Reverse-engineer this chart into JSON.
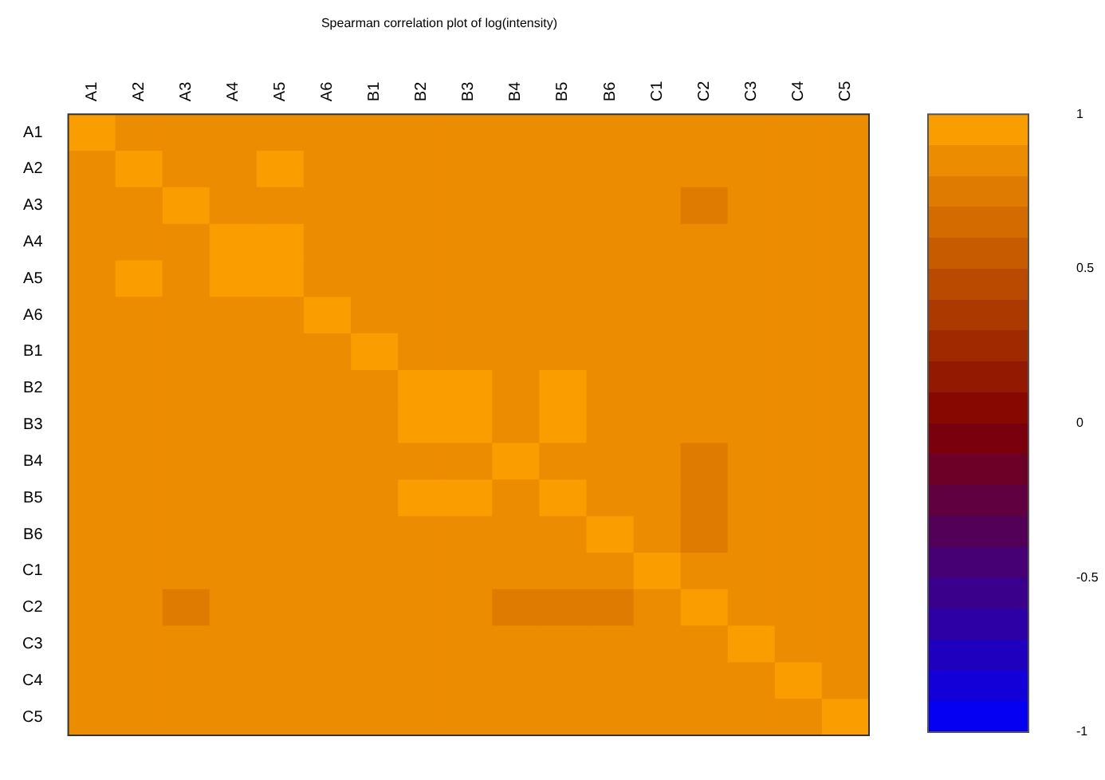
{
  "chart_data": {
    "type": "heatmap",
    "title": "Spearman correlation plot of log(intensity)",
    "categories": [
      "A1",
      "A2",
      "A3",
      "A4",
      "A5",
      "A6",
      "B1",
      "B2",
      "B3",
      "B4",
      "B5",
      "B6",
      "C1",
      "C2",
      "C3",
      "C4",
      "C5"
    ],
    "y_categories": [
      "A1",
      "A2",
      "A3",
      "A4",
      "A5",
      "A6",
      "B1",
      "B2",
      "B3",
      "B4",
      "B5",
      "B6",
      "C1",
      "C2",
      "C3",
      "C4",
      "C5"
    ],
    "cells": [
      [
        1,
        0.85,
        0.85,
        0.85,
        0.85,
        0.85,
        0.85,
        0.85,
        0.85,
        0.85,
        0.85,
        0.85,
        0.85,
        0.85,
        0.85,
        0.85,
        0.85
      ],
      [
        0.85,
        1,
        0.85,
        0.85,
        0.95,
        0.85,
        0.85,
        0.85,
        0.85,
        0.85,
        0.85,
        0.85,
        0.85,
        0.85,
        0.85,
        0.85,
        0.85
      ],
      [
        0.85,
        0.85,
        1,
        0.85,
        0.85,
        0.85,
        0.85,
        0.85,
        0.85,
        0.85,
        0.85,
        0.85,
        0.85,
        0.75,
        0.85,
        0.85,
        0.85
      ],
      [
        0.85,
        0.85,
        0.85,
        1,
        0.95,
        0.85,
        0.85,
        0.85,
        0.85,
        0.85,
        0.85,
        0.85,
        0.85,
        0.85,
        0.85,
        0.85,
        0.85
      ],
      [
        0.85,
        0.95,
        0.85,
        0.95,
        1,
        0.85,
        0.85,
        0.85,
        0.85,
        0.85,
        0.85,
        0.85,
        0.85,
        0.85,
        0.85,
        0.85,
        0.85
      ],
      [
        0.85,
        0.85,
        0.85,
        0.85,
        0.85,
        1,
        0.85,
        0.85,
        0.85,
        0.85,
        0.85,
        0.85,
        0.85,
        0.85,
        0.85,
        0.85,
        0.85
      ],
      [
        0.85,
        0.85,
        0.85,
        0.85,
        0.85,
        0.85,
        1,
        0.85,
        0.85,
        0.85,
        0.85,
        0.85,
        0.85,
        0.85,
        0.85,
        0.85,
        0.85
      ],
      [
        0.85,
        0.85,
        0.85,
        0.85,
        0.85,
        0.85,
        0.85,
        1,
        0.95,
        0.85,
        0.95,
        0.85,
        0.85,
        0.85,
        0.85,
        0.85,
        0.85
      ],
      [
        0.85,
        0.85,
        0.85,
        0.85,
        0.85,
        0.85,
        0.85,
        0.95,
        1,
        0.85,
        0.95,
        0.85,
        0.85,
        0.85,
        0.85,
        0.85,
        0.85
      ],
      [
        0.85,
        0.85,
        0.85,
        0.85,
        0.85,
        0.85,
        0.85,
        0.85,
        0.85,
        1,
        0.85,
        0.85,
        0.85,
        0.75,
        0.85,
        0.85,
        0.85
      ],
      [
        0.85,
        0.85,
        0.85,
        0.85,
        0.85,
        0.85,
        0.85,
        0.95,
        0.95,
        0.85,
        1,
        0.85,
        0.85,
        0.75,
        0.85,
        0.85,
        0.85
      ],
      [
        0.85,
        0.85,
        0.85,
        0.85,
        0.85,
        0.85,
        0.85,
        0.85,
        0.85,
        0.85,
        0.85,
        1,
        0.85,
        0.75,
        0.85,
        0.85,
        0.85
      ],
      [
        0.85,
        0.85,
        0.85,
        0.85,
        0.85,
        0.85,
        0.85,
        0.85,
        0.85,
        0.85,
        0.85,
        0.85,
        1,
        0.85,
        0.85,
        0.85,
        0.85
      ],
      [
        0.85,
        0.85,
        0.75,
        0.85,
        0.85,
        0.85,
        0.85,
        0.85,
        0.85,
        0.75,
        0.75,
        0.75,
        0.85,
        1,
        0.85,
        0.85,
        0.85
      ],
      [
        0.85,
        0.85,
        0.85,
        0.85,
        0.85,
        0.85,
        0.85,
        0.85,
        0.85,
        0.85,
        0.85,
        0.85,
        0.85,
        0.85,
        1,
        0.85,
        0.85
      ],
      [
        0.85,
        0.85,
        0.85,
        0.85,
        0.85,
        0.85,
        0.85,
        0.85,
        0.85,
        0.85,
        0.85,
        0.85,
        0.85,
        0.85,
        0.85,
        1,
        0.85
      ],
      [
        0.85,
        0.85,
        0.85,
        0.85,
        0.85,
        0.85,
        0.85,
        0.85,
        0.85,
        0.85,
        0.85,
        0.85,
        0.85,
        0.85,
        0.85,
        0.85,
        1
      ]
    ],
    "clim": [
      -1,
      1
    ],
    "cticks": [
      1,
      0.5,
      0,
      -0.5,
      -1
    ]
  }
}
